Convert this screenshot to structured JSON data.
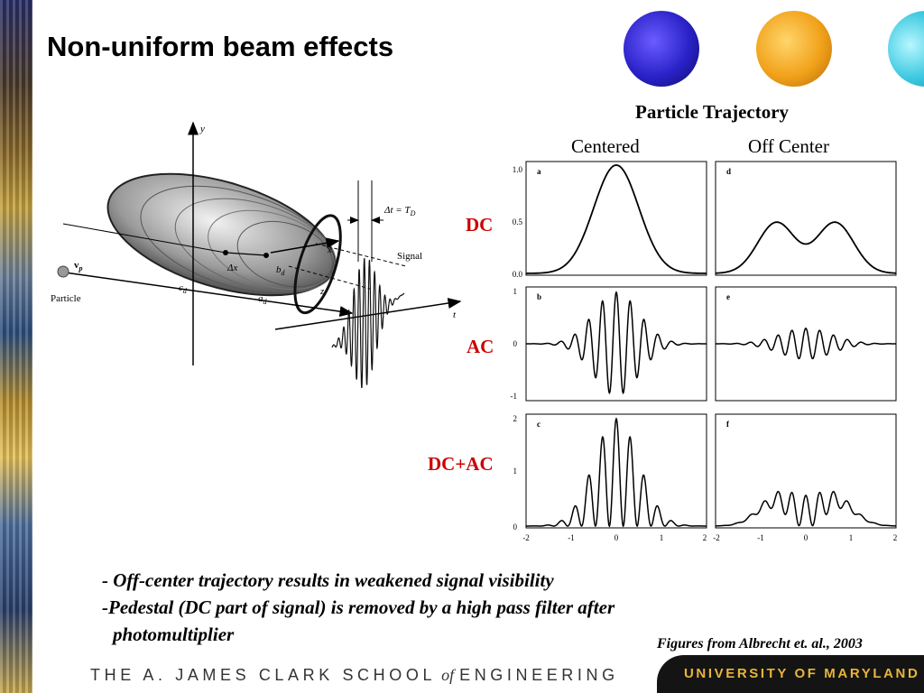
{
  "slide": {
    "title": "Non-uniform beam effects",
    "particle_trajectory_label": "Particle Trajectory",
    "column_labels": [
      "Centered",
      "Off Center"
    ],
    "row_labels": [
      "DC",
      "AC",
      "DC+AC"
    ],
    "bullets": [
      "- Off-center trajectory results in weakened signal visibility",
      "-Pedestal (DC part of signal) is removed by a high pass filter after",
      "photomultiplier"
    ],
    "credit": "Figures from Albrecht et. al., 2003",
    "footer_left_pre": "THE A. JAMES CLARK SCHOOL",
    "footer_left_of": "of",
    "footer_left_post": "ENGINEERING",
    "footer_right": "UNIVERSITY OF MARYLAND"
  },
  "diagram": {
    "axis_y": "y",
    "axis_x": "x",
    "axis_z": "z",
    "axis_t": "t",
    "particle": "Particle",
    "signal": "Signal",
    "delta_t_left": "Δt = T",
    "delta_t_sub": "D",
    "velocity": "v",
    "velocity_sub": "p",
    "delta_x": "Δx",
    "c_d": "c",
    "a_d": "a",
    "b_d": "b",
    "d_sub": "d"
  },
  "chart_data": {
    "type": "line",
    "panels": [
      {
        "letter": "a",
        "yticks": [
          "1.0",
          "0.5",
          "0.0"
        ],
        "ylim": [
          0,
          1
        ]
      },
      {
        "letter": "d",
        "ylim": [
          0,
          1
        ]
      },
      {
        "letter": "b",
        "yticks": [
          "1",
          "0",
          "-1"
        ],
        "ylim": [
          -1,
          1
        ]
      },
      {
        "letter": "e",
        "ylim": [
          -1,
          1
        ]
      },
      {
        "letter": "c",
        "yticks": [
          "2",
          "1",
          "0"
        ],
        "ylim": [
          0,
          2
        ]
      },
      {
        "letter": "f",
        "ylim": [
          0,
          2
        ]
      }
    ],
    "xticks_left": [
      "-2",
      "-1",
      "0",
      "1",
      "2"
    ],
    "xticks_right": [
      "-2",
      "-1",
      "0",
      "1",
      "2"
    ],
    "xlim": [
      -2,
      2
    ]
  }
}
